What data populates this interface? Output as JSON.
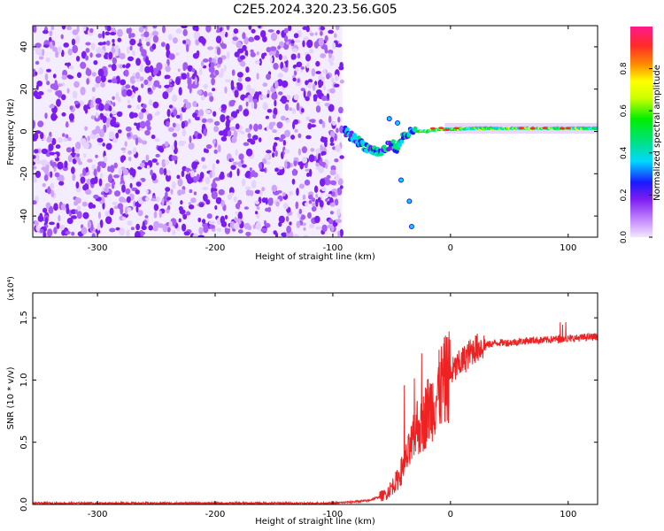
{
  "title": "C2E5.2024.320.23.56.G05",
  "chart_data": [
    {
      "type": "heatmap",
      "xlabel": "Height of straight line (km)",
      "ylabel": "Frequency (Hz)",
      "xlim": [
        -355,
        125
      ],
      "ylim": [
        -50,
        50
      ],
      "x_ticks": [
        -300,
        -200,
        -100,
        0,
        100
      ],
      "y_ticks": [
        -40,
        -20,
        0,
        20,
        40
      ],
      "colorbar": {
        "label": "Normalized spectral amplitude",
        "range": [
          0.0,
          1.0
        ],
        "ticks": [
          0.0,
          0.2,
          0.4,
          0.6,
          0.8
        ],
        "colormap": [
          "#e9d6ff",
          "#7d1cf0",
          "#1a1aff",
          "#00d8ff",
          "#00e27a",
          "#00ee00",
          "#ffff00",
          "#ff8c00",
          "#ff2a2a",
          "#ff1a8c"
        ]
      },
      "regions": [
        {
          "name": "noise",
          "x_range": [
            -355,
            -92
          ],
          "y_range": [
            -50,
            50
          ],
          "amplitude": 0.15,
          "color": "#7a22e8"
        },
        {
          "name": "signal-track",
          "points": [
            [
              -90,
              0
            ],
            [
              -80,
              -4
            ],
            [
              -70,
              -8
            ],
            [
              -60,
              -10
            ],
            [
              -50,
              -6
            ],
            [
              -45,
              -8
            ],
            [
              -40,
              -2
            ],
            [
              -30,
              0
            ],
            [
              -20,
              0
            ],
            [
              -10,
              1
            ],
            [
              0,
              1
            ],
            [
              20,
              1.5
            ],
            [
              40,
              1.5
            ],
            [
              60,
              1.5
            ],
            [
              80,
              1.5
            ],
            [
              100,
              1.5
            ],
            [
              125,
              1.5
            ]
          ],
          "amplitude": 0.9
        }
      ],
      "grid": false
    },
    {
      "type": "line",
      "xlabel": "Height of straight line (km)",
      "ylabel": "SNR (10 * v/v)",
      "y_multiplier": "(x10⁴)",
      "xlim": [
        -355,
        125
      ],
      "ylim": [
        0,
        1.7
      ],
      "x_ticks": [
        -300,
        -200,
        -100,
        0,
        100
      ],
      "y_ticks": [
        0.0,
        0.5,
        1.0,
        1.5
      ],
      "y_tick_labels": [
        "0.0",
        "0.5",
        "1.0",
        "1.5"
      ],
      "series": [
        {
          "color": "#ee2222",
          "x": [
            -355,
            -300,
            -200,
            -100,
            -70,
            -55,
            -45,
            -38,
            -32,
            -28,
            -25,
            -20,
            -16,
            -12,
            -8,
            -4,
            0,
            5,
            10,
            15,
            20,
            30,
            40,
            50,
            60,
            70,
            80,
            90,
            100,
            110,
            125
          ],
          "values": [
            0.01,
            0.01,
            0.01,
            0.01,
            0.03,
            0.08,
            0.2,
            0.35,
            0.5,
            0.65,
            0.6,
            0.75,
            0.8,
            0.85,
            0.95,
            1.0,
            1.05,
            1.1,
            1.15,
            1.2,
            1.25,
            1.28,
            1.3,
            1.3,
            1.31,
            1.32,
            1.32,
            1.33,
            1.33,
            1.34,
            1.35
          ]
        }
      ],
      "grid": false
    }
  ]
}
